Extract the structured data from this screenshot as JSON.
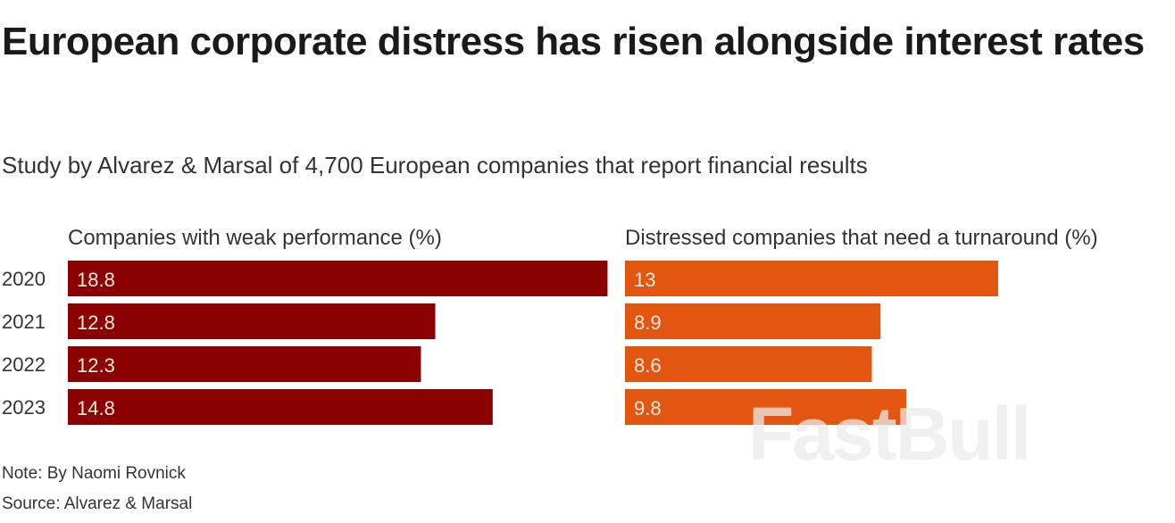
{
  "title": "European corporate distress has risen alongside interest rates",
  "subtitle": "Study by Alvarez & Marsal of 4,700 European companies that report financial results",
  "note": "Note: By Naomi Rovnick",
  "source": "Source: Alvarez & Marsal",
  "watermark": "FastBull",
  "chart_data": [
    {
      "type": "bar",
      "orientation": "horizontal",
      "title": "Companies with weak performance (%)",
      "categories": [
        "2020",
        "2021",
        "2022",
        "2023"
      ],
      "values": [
        18.8,
        12.8,
        12.3,
        14.8
      ],
      "color": "#8b0000",
      "xlim": [
        0,
        18.8
      ]
    },
    {
      "type": "bar",
      "orientation": "horizontal",
      "title": "Distressed companies that need a turnaround (%)",
      "categories": [
        "2020",
        "2021",
        "2022",
        "2023"
      ],
      "values": [
        13,
        8.9,
        8.6,
        9.8
      ],
      "color": "#e35612",
      "xlim": [
        0,
        13
      ]
    }
  ]
}
